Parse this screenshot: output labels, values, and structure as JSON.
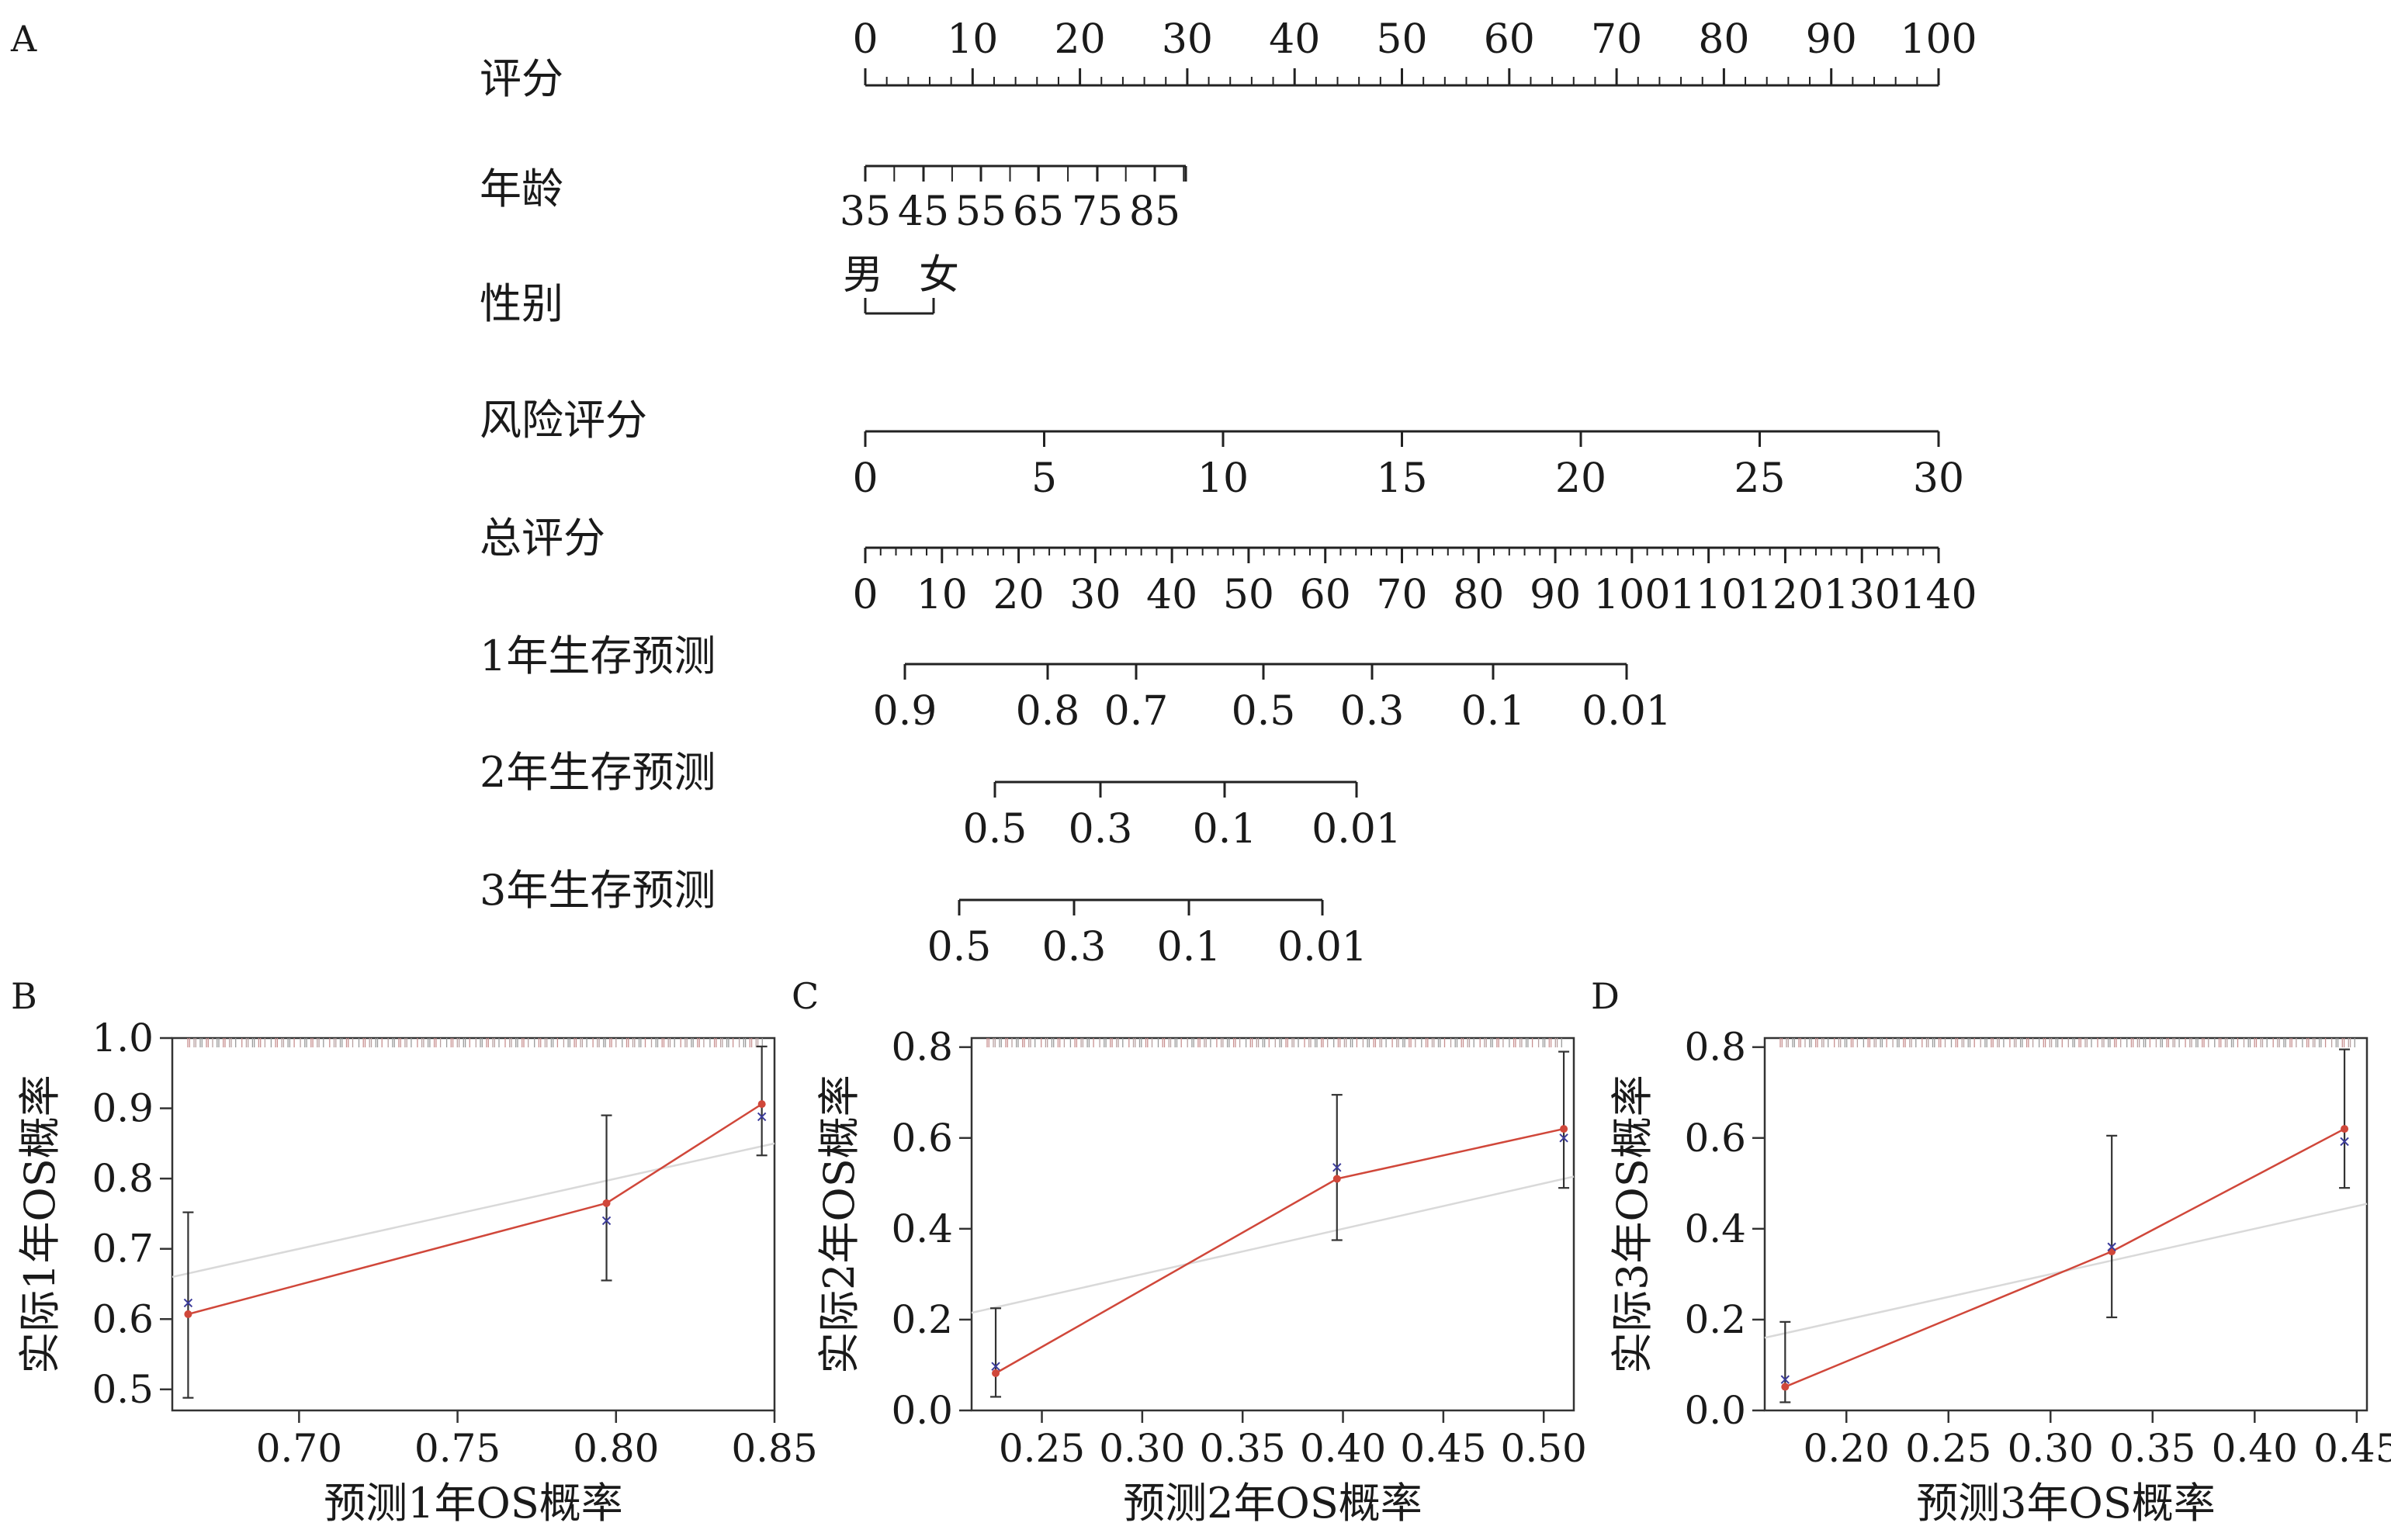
{
  "nomogram": {
    "panel_label": "A",
    "rows": [
      {
        "label": "评分",
        "ticks": [
          "0",
          "10",
          "20",
          "30",
          "40",
          "50",
          "60",
          "70",
          "80",
          "90",
          "100"
        ],
        "minor": 5
      },
      {
        "label": "年龄",
        "ticks": [
          "35",
          "45",
          "55",
          "65",
          "75",
          "85"
        ],
        "minor": 0
      },
      {
        "label": "性别",
        "ticks": [
          "男",
          "女"
        ],
        "minor": 0
      },
      {
        "label": "风险评分",
        "ticks": [
          "0",
          "5",
          "10",
          "15",
          "20",
          "25",
          "30"
        ],
        "minor": 0
      },
      {
        "label": "总评分",
        "ticks": [
          "0",
          "10",
          "20",
          "30",
          "40",
          "50",
          "60",
          "70",
          "80",
          "90",
          "100",
          "110",
          "120",
          "130",
          "140"
        ],
        "minor": 5
      },
      {
        "label": "1年生存预测",
        "ticks": [
          "0.9",
          "0.8",
          "0.7",
          "0.5",
          "0.3",
          "0.1",
          "0.01"
        ],
        "minor": 0
      },
      {
        "label": "2年生存预测",
        "ticks": [
          "0.5",
          "0.3",
          "0.1",
          "0.01"
        ],
        "minor": 0
      },
      {
        "label": "3年生存预测",
        "ticks": [
          "0.5",
          "0.3",
          "0.1",
          "0.01"
        ],
        "minor": 0
      }
    ]
  },
  "chart_data": [
    {
      "panel_label": "B",
      "type": "line",
      "xlabel": "预测1年OS概率",
      "ylabel": "实际1年OS概率",
      "xlim": [
        0.66,
        0.85
      ],
      "ylim": [
        0.47,
        1.0
      ],
      "xticks": [
        "0.70",
        "0.75",
        "0.80",
        "0.85"
      ],
      "yticks": [
        "0.5",
        "0.6",
        "0.7",
        "0.8",
        "0.9",
        "1.0"
      ],
      "observed": {
        "x": [
          0.665,
          0.797,
          0.846
        ],
        "y": [
          0.607,
          0.765,
          0.906
        ],
        "lower": [
          0.488,
          0.655,
          0.833
        ],
        "upper": [
          0.752,
          0.89,
          0.988
        ]
      },
      "bias_corrected": {
        "x": [
          0.665,
          0.797,
          0.846
        ],
        "y": [
          0.623,
          0.74,
          0.888
        ]
      },
      "reference": {
        "x": [
          0.66,
          0.85
        ],
        "y": [
          0.66,
          0.85
        ]
      },
      "colors": {
        "observed": "#d0473a",
        "bias_corrected": "#3b3b9a",
        "reference": "#d9d9d9",
        "error": "#333333"
      }
    },
    {
      "panel_label": "C",
      "type": "line",
      "xlabel": "预测2年OS概率",
      "ylabel": "实际2年OS概率",
      "xlim": [
        0.215,
        0.515
      ],
      "ylim": [
        0.0,
        0.82
      ],
      "xticks": [
        "0.25",
        "0.30",
        "0.35",
        "0.40",
        "0.45",
        "0.50"
      ],
      "yticks": [
        "0.0",
        "0.2",
        "0.4",
        "0.6",
        "0.8"
      ],
      "observed": {
        "x": [
          0.227,
          0.397,
          0.51
        ],
        "y": [
          0.082,
          0.51,
          0.62
        ],
        "lower": [
          0.03,
          0.375,
          0.49
        ],
        "upper": [
          0.225,
          0.695,
          0.79
        ]
      },
      "bias_corrected": {
        "x": [
          0.227,
          0.397,
          0.51
        ],
        "y": [
          0.097,
          0.535,
          0.6
        ]
      },
      "reference": {
        "x": [
          0.215,
          0.515
        ],
        "y": [
          0.215,
          0.515
        ]
      },
      "colors": {
        "observed": "#d0473a",
        "bias_corrected": "#3b3b9a",
        "reference": "#d9d9d9",
        "error": "#333333"
      }
    },
    {
      "panel_label": "D",
      "type": "line",
      "xlabel": "预测3年OS概率",
      "ylabel": "实际3年OS概率",
      "xlim": [
        0.16,
        0.455
      ],
      "ylim": [
        0.0,
        0.82
      ],
      "xticks": [
        "0.20",
        "0.25",
        "0.30",
        "0.35",
        "0.40",
        "0.45"
      ],
      "yticks": [
        "0.0",
        "0.2",
        "0.4",
        "0.6",
        "0.8"
      ],
      "observed": {
        "x": [
          0.17,
          0.33,
          0.444
        ],
        "y": [
          0.052,
          0.35,
          0.62
        ],
        "lower": [
          0.018,
          0.205,
          0.49
        ],
        "upper": [
          0.195,
          0.605,
          0.795
        ]
      },
      "bias_corrected": {
        "x": [
          0.17,
          0.33,
          0.444
        ],
        "y": [
          0.068,
          0.36,
          0.592
        ]
      },
      "reference": {
        "x": [
          0.16,
          0.455
        ],
        "y": [
          0.16,
          0.455
        ]
      },
      "colors": {
        "observed": "#d0473a",
        "bias_corrected": "#3b3b9a",
        "reference": "#d9d9d9",
        "error": "#333333"
      }
    }
  ]
}
